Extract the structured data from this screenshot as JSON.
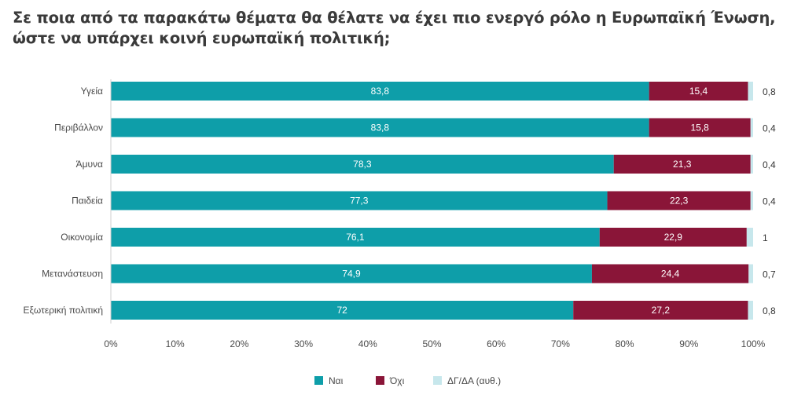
{
  "title": "Σε ποια από τα παρακάτω θέματα θα θέλατε να έχει πιο ενεργό ρόλο η Ευρωπαϊκή Ένωση, ώστε να υπάρχει κοινή ευρωπαϊκή πολιτική;",
  "colors": {
    "yes": "#0e9ea9",
    "no": "#8a1538",
    "dk": "#c7e7ec"
  },
  "chart_data": {
    "type": "bar",
    "orientation": "horizontal",
    "stacked": true,
    "title": "Σε ποια από τα παρακάτω θέματα θα θέλατε να έχει πιο ενεργό ρόλο η Ευρωπαϊκή Ένωση, ώστε να υπάρχει κοινή ευρωπαϊκή πολιτική;",
    "categories": [
      "Υγεία",
      "Περιβάλλον",
      "Άμυνα",
      "Παιδεία",
      "Οικονομία",
      "Μετανάστευση",
      "Εξωτερική πολιτική"
    ],
    "series": [
      {
        "name": "Ναι",
        "values": [
          83.8,
          83.8,
          78.3,
          77.3,
          76.1,
          74.9,
          72
        ],
        "labels": [
          "83,8",
          "83,8",
          "78,3",
          "77,3",
          "76,1",
          "74,9",
          "72"
        ]
      },
      {
        "name": "Όχι",
        "values": [
          15.4,
          15.8,
          21.3,
          22.3,
          22.9,
          24.4,
          27.2
        ],
        "labels": [
          "15,4",
          "15,8",
          "21,3",
          "22,3",
          "22,9",
          "24,4",
          "27,2"
        ]
      },
      {
        "name": "ΔΓ/ΔΑ (αυθ.)",
        "values": [
          0.8,
          0.4,
          0.4,
          0.4,
          1,
          0.7,
          0.8
        ],
        "labels": [
          "0,8",
          "0,4",
          "0,4",
          "0,4",
          "1",
          "0,7",
          "0,8"
        ]
      }
    ],
    "xlim": [
      0,
      100
    ],
    "xticks": [
      "0%",
      "10%",
      "20%",
      "30%",
      "40%",
      "50%",
      "60%",
      "70%",
      "80%",
      "90%",
      "100%"
    ],
    "grid": false,
    "legend": "bottom-center"
  }
}
